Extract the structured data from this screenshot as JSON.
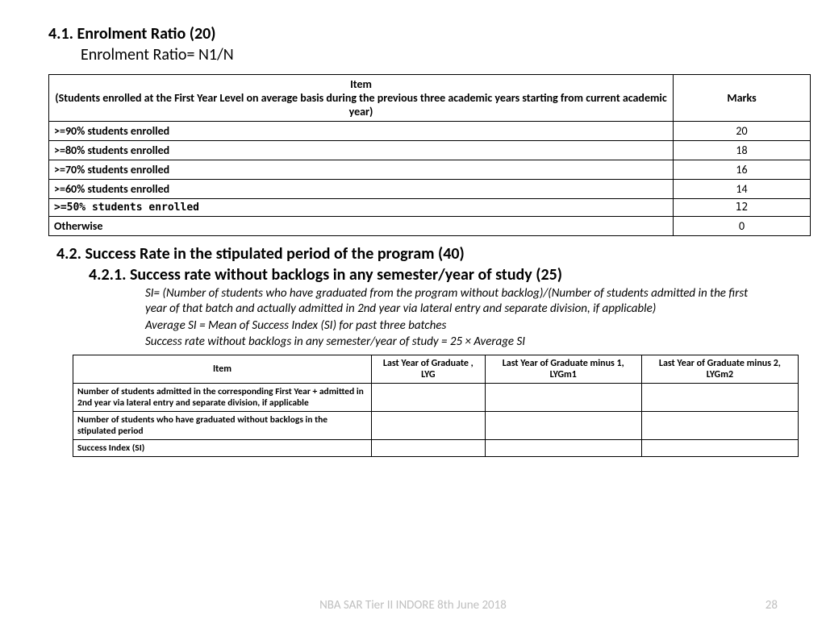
{
  "section41": {
    "title": "4.1. Enrolment Ratio (20)",
    "subtitle": "Enrolment Ratio= N1/N"
  },
  "table1": {
    "header_item_line1": "Item",
    "header_item_line2": "(Students enrolled at the First Year Level on average basis during the previous three academic years starting from current academic year)",
    "header_marks": "Marks",
    "rows": [
      {
        "label": ">=90% students enrolled",
        "mark": "20"
      },
      {
        "label": ">=80% students enrolled",
        "mark": "18"
      },
      {
        "label": ">=70% students enrolled",
        "mark": "16"
      },
      {
        "label": ">=60% students enrolled",
        "mark": "14"
      },
      {
        "label": ">=50% students enrolled",
        "mark": "12"
      },
      {
        "label": "Otherwise",
        "mark": "0"
      }
    ]
  },
  "section42": {
    "title": "4.2. Success Rate in the stipulated period of the program (40)",
    "sub_title": "4.2.1. Success rate without backlogs in any semester/year of study (25)",
    "explain1": "SI= (Number of students who have graduated from the program without backlog)/(Number of students admitted in the first year of that batch and actually admitted in 2nd year via lateral entry and separate division, if applicable)",
    "explain2": "Average SI = Mean of Success Index (SI) for past three batches",
    "explain3": "Success rate without backlogs in any semester/year of study = 25 × Average SI"
  },
  "table2": {
    "columns": [
      "Item",
      "Last Year of Graduate , LYG",
      "Last Year of Graduate minus 1, LYGm1",
      "Last Year of Graduate minus 2, LYGm2"
    ],
    "rows": [
      {
        "desc": "Number of students admitted in the corresponding  First Year + admitted in 2nd year via  lateral entry and separate division, if applicable"
      },
      {
        "desc": "Number of students who have graduated without backlogs in the stipulated period"
      },
      {
        "desc": "Success Index (SI)"
      }
    ]
  },
  "footer": {
    "text": "NBA SAR Tier II INDORE 8th June 2018",
    "page": "28"
  }
}
